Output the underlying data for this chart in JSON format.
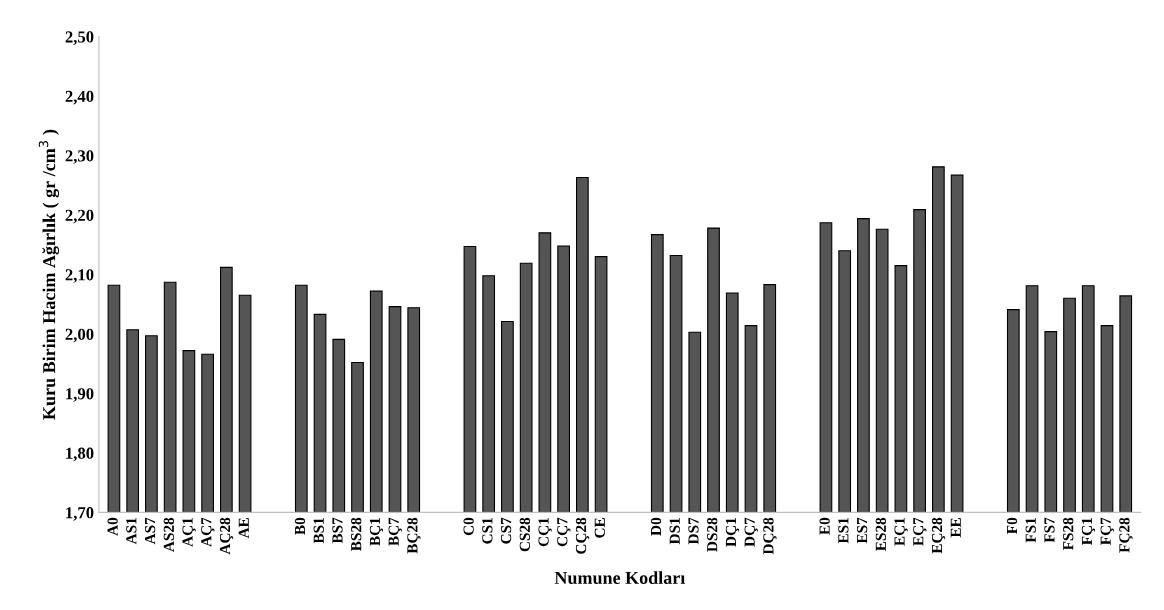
{
  "chart_data": {
    "type": "bar",
    "xlabel": "Numune Kodları",
    "ylabel": "Kuru Birim Hacim Ağırlık ( gr /cm$^{3}$ )",
    "categories": [
      "A0",
      "AS1",
      "AS7",
      "AS28",
      "AÇ1",
      "AÇ7",
      "AÇ28",
      "AE",
      null,
      null,
      "B0",
      "BS1",
      "BS7",
      "BS28",
      "BÇ1",
      "BÇ7",
      "BÇ28",
      null,
      null,
      "C0",
      "CS1",
      "CS7",
      "CS28",
      "CÇ1",
      "CÇ7",
      "CÇ28",
      "CE",
      null,
      null,
      "D0",
      "DS1",
      "DS7",
      "DS28",
      "DÇ1",
      "DÇ7",
      "DÇ28",
      null,
      null,
      "E0",
      "ES1",
      "ES7",
      "ES28",
      "EÇ1",
      "EÇ7",
      "EÇ28",
      "EE",
      null,
      null,
      "F0",
      "FS1",
      "FS7",
      "FS28",
      "FÇ1",
      "FÇ7",
      "FÇ28"
    ],
    "values": [
      2.082,
      2.007,
      1.997,
      2.087,
      1.972,
      1.966,
      2.112,
      2.065,
      null,
      null,
      2.082,
      2.033,
      1.991,
      1.952,
      2.072,
      2.046,
      2.044,
      null,
      null,
      2.147,
      2.098,
      2.021,
      2.119,
      2.17,
      2.148,
      2.263,
      2.13,
      null,
      null,
      2.167,
      2.132,
      2.003,
      2.178,
      2.069,
      2.014,
      2.083,
      null,
      null,
      2.187,
      2.14,
      2.194,
      2.176,
      2.115,
      2.209,
      2.281,
      2.267,
      null,
      null,
      2.041,
      2.081,
      2.004,
      2.06,
      2.081,
      2.014,
      2.064
    ],
    "color": "#555555",
    "ylim": [
      1.7,
      2.5
    ],
    "yticks": [
      {
        "value": 1.7,
        "label": "1,70"
      },
      {
        "value": 1.8,
        "label": "1,80"
      },
      {
        "value": 1.9,
        "label": "1,90"
      },
      {
        "value": 2.0,
        "label": "2,00"
      },
      {
        "value": 2.1,
        "label": "2,10"
      },
      {
        "value": 2.2,
        "label": "2,20"
      },
      {
        "value": 2.3,
        "label": "2,30"
      },
      {
        "value": 2.4,
        "label": "2,40"
      },
      {
        "value": 2.5,
        "label": "2,50"
      }
    ],
    "grid": false,
    "legend": false
  }
}
